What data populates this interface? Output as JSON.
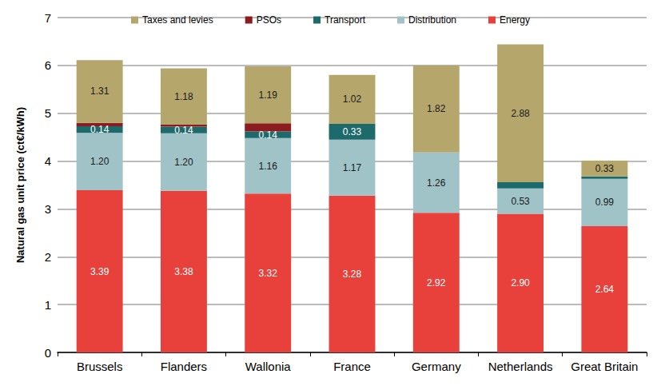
{
  "chart_data": {
    "type": "bar",
    "stacked": true,
    "grid": true,
    "legend": "top",
    "data_labels": true,
    "y_label": "Natural gas unit price (ct€/kWh)",
    "categories": [
      "Brussels",
      "Flanders",
      "Wallonia",
      "France",
      "Germany",
      "Netherlands",
      "Great Britain"
    ],
    "ylim": [
      0,
      7
    ],
    "yticks": [
      0,
      1,
      2,
      3,
      4,
      5,
      6,
      7
    ],
    "series": [
      {
        "name": "Energy",
        "color": "#e8403a",
        "values": [
          3.39,
          3.38,
          3.32,
          3.28,
          2.92,
          2.9,
          2.64
        ],
        "value_labels": [
          "3.39",
          "3.38",
          "3.32",
          "3.28",
          "2.92",
          "2.90",
          "2.64"
        ]
      },
      {
        "name": "Distribution",
        "color": "#9fc3c7",
        "values": [
          1.2,
          1.2,
          1.16,
          1.17,
          1.26,
          0.53,
          0.99
        ],
        "value_labels": [
          "1.20",
          "1.20",
          "1.16",
          "1.17",
          "1.26",
          "0.53",
          "0.99"
        ]
      },
      {
        "name": "Transport",
        "color": "#1d6a6c",
        "values": [
          0.14,
          0.14,
          0.14,
          0.33,
          0,
          0.13,
          0.05
        ],
        "value_labels": [
          "0.14",
          "0.14",
          "0.14",
          "0.33",
          null,
          null,
          null
        ]
      },
      {
        "name": "PSOs",
        "color": "#8b1c1f",
        "values": [
          0.07,
          0.04,
          0.17,
          0,
          0,
          0,
          0
        ],
        "value_labels": [
          null,
          null,
          null,
          null,
          null,
          null,
          null
        ]
      },
      {
        "name": "Taxes and levies",
        "color": "#b5a66b",
        "values": [
          1.31,
          1.18,
          1.19,
          1.02,
          1.82,
          2.88,
          0.33
        ],
        "value_labels": [
          "1.31",
          "1.18",
          "1.19",
          "1.02",
          "1.82",
          "2.88",
          "0.33"
        ]
      }
    ]
  }
}
